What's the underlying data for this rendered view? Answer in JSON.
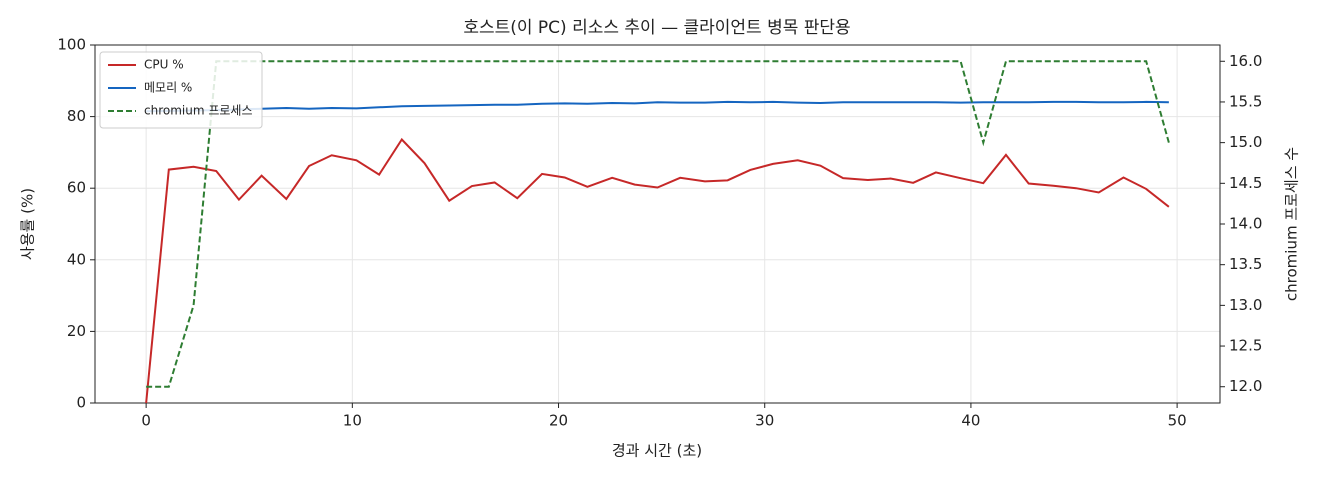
{
  "chart_data": {
    "type": "line",
    "title": "호스트(이 PC) 리소스 추이 — 클라이언트 병목 판단용",
    "x_label": "경과 시간 (초)",
    "y_label": "사용률 (%)",
    "y2_label": "chromium 프로세스 수",
    "x": [
      0,
      1.1,
      2.3,
      3.4,
      4.5,
      5.6,
      6.8,
      7.9,
      9.0,
      10.2,
      11.3,
      12.4,
      13.5,
      14.7,
      15.8,
      16.9,
      18.0,
      19.2,
      20.3,
      21.4,
      22.6,
      23.7,
      24.8,
      25.9,
      27.1,
      28.2,
      29.3,
      30.4,
      31.6,
      32.7,
      33.8,
      35.0,
      36.1,
      37.2,
      38.3,
      39.5,
      40.6,
      41.7,
      42.8,
      44.0,
      45.1,
      46.2,
      47.4,
      48.5,
      49.6
    ],
    "series": [
      {
        "name": "CPU %",
        "color": "#c62828",
        "dash": false,
        "values": [
          0,
          65.2,
          66,
          64.8,
          56.8,
          63.5,
          57,
          66.2,
          69.2,
          67.8,
          63.8,
          73.6,
          67,
          56.5,
          60.6,
          61.6,
          57.2,
          64,
          63,
          60.4,
          62.9,
          61,
          60.2,
          62.9,
          61.9,
          62.2,
          65.1,
          66.8,
          67.8,
          66.3,
          62.8,
          62.3,
          62.7,
          61.5,
          64.4,
          62.8,
          61.4,
          69.3,
          61.3,
          60.7,
          60,
          58.8,
          63,
          59.8,
          54.8
        ]
      },
      {
        "name": "메모리 %",
        "color": "#1565c0",
        "dash": false,
        "values": [
          81.5,
          81.6,
          81.7,
          81.8,
          82,
          82.2,
          82.4,
          82.2,
          82.4,
          82.3,
          82.6,
          82.9,
          83,
          83.1,
          83.2,
          83.3,
          83.3,
          83.6,
          83.7,
          83.6,
          83.8,
          83.7,
          84,
          83.9,
          83.9,
          84.1,
          84,
          84.1,
          83.9,
          83.8,
          84,
          84,
          84,
          84,
          84,
          83.9,
          84,
          84,
          84,
          84.1,
          84.1,
          84,
          84,
          84.1,
          84
        ]
      },
      {
        "name": "chromium 프로세스",
        "color": "#2e7d32",
        "dash": true,
        "axis": "y2",
        "values": [
          12,
          12,
          13,
          16,
          16,
          16,
          16,
          16,
          16,
          16,
          16,
          16,
          16,
          16,
          16,
          16,
          16,
          16,
          16,
          16,
          16,
          16,
          16,
          16,
          16,
          16,
          16,
          16,
          16,
          16,
          16,
          16,
          16,
          16,
          16,
          16,
          15,
          16,
          16,
          16,
          16,
          16,
          16,
          16,
          15
        ]
      }
    ],
    "xlim": [
      -2.48,
      52.08
    ],
    "xticks": [
      0,
      10,
      20,
      30,
      40,
      50
    ],
    "ylim": [
      0,
      100
    ],
    "yticks": [
      0,
      20,
      40,
      60,
      80,
      100
    ],
    "y2lim": [
      11.8,
      16.2
    ],
    "y2ticks": [
      {
        "value": 12,
        "label": "12.0"
      },
      {
        "value": 12.5,
        "label": "12.5"
      },
      {
        "value": 13,
        "label": "13.0"
      },
      {
        "value": 13.5,
        "label": "13.5"
      },
      {
        "value": 14,
        "label": "14.0"
      },
      {
        "value": 14.5,
        "label": "14.5"
      },
      {
        "value": 15,
        "label": "15.0"
      },
      {
        "value": 15.5,
        "label": "15.5"
      },
      {
        "value": 16,
        "label": "16.0"
      }
    ],
    "grid": true,
    "legend": "upper-left"
  }
}
